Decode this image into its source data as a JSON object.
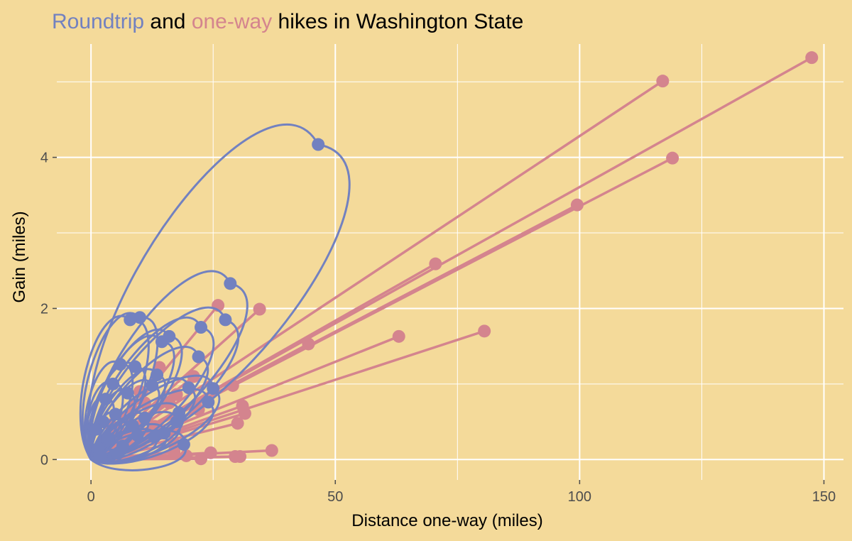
{
  "chart_data": {
    "type": "scatter",
    "title_parts": [
      {
        "text": "Roundtrip",
        "color": "#7281C0"
      },
      {
        "text": " and ",
        "color": "#000000"
      },
      {
        "text": "one-way",
        "color": "#D4848E"
      },
      {
        "text": " hikes in Washington State",
        "color": "#000000"
      }
    ],
    "xlabel": "Distance one-way (miles)",
    "ylabel": "Gain (miles)",
    "xlim": [
      -7,
      154
    ],
    "ylim": [
      -0.27,
      5.5
    ],
    "x_ticks": [
      0,
      50,
      100,
      150
    ],
    "y_ticks": [
      0,
      2,
      4
    ],
    "grid": true,
    "legend": "none",
    "colors": {
      "roundtrip": "#7281C0",
      "oneway": "#D4848E",
      "background": "#F4DA9A",
      "grid": "#FFFFFF"
    },
    "series": [
      {
        "name": "one-way",
        "style": "straight-line-from-origin",
        "points": [
          {
            "x": 147.5,
            "y": 5.32
          },
          {
            "x": 117,
            "y": 5.01
          },
          {
            "x": 119,
            "y": 3.99
          },
          {
            "x": 99.5,
            "y": 3.37
          },
          {
            "x": 70.5,
            "y": 2.59
          },
          {
            "x": 80.5,
            "y": 1.7
          },
          {
            "x": 63,
            "y": 1.63
          },
          {
            "x": 44.5,
            "y": 1.53
          },
          {
            "x": 34.5,
            "y": 1.99
          },
          {
            "x": 26,
            "y": 2.04
          },
          {
            "x": 29,
            "y": 0.98
          },
          {
            "x": 31,
            "y": 0.71
          },
          {
            "x": 31.5,
            "y": 0.61
          },
          {
            "x": 30,
            "y": 0.48
          },
          {
            "x": 37,
            "y": 0.12
          },
          {
            "x": 30.5,
            "y": 0.04
          },
          {
            "x": 29.5,
            "y": 0.04
          },
          {
            "x": 24.5,
            "y": 0.09
          },
          {
            "x": 22.5,
            "y": 0.01
          },
          {
            "x": 22,
            "y": 0.66
          },
          {
            "x": 21,
            "y": 1.1
          },
          {
            "x": 17.5,
            "y": 0.86
          },
          {
            "x": 16,
            "y": 0.75
          },
          {
            "x": 14,
            "y": 1.22
          },
          {
            "x": 17,
            "y": 0.21
          },
          {
            "x": 17,
            "y": 0.1
          },
          {
            "x": 13,
            "y": 0.44
          },
          {
            "x": 11,
            "y": 0.75
          },
          {
            "x": 19.5,
            "y": 0.05
          },
          {
            "x": 8.5,
            "y": 0.65
          },
          {
            "x": 6.5,
            "y": 0.34
          },
          {
            "x": 5.5,
            "y": 0.19
          },
          {
            "x": 10,
            "y": 0.9
          },
          {
            "x": 4,
            "y": 0.46
          }
        ]
      },
      {
        "name": "roundtrip",
        "style": "loop-from-origin",
        "points": [
          {
            "x": 46.5,
            "y": 4.17
          },
          {
            "x": 28.5,
            "y": 2.33
          },
          {
            "x": 27.5,
            "y": 1.85
          },
          {
            "x": 10,
            "y": 1.88
          },
          {
            "x": 8,
            "y": 1.85
          },
          {
            "x": 22.5,
            "y": 1.75
          },
          {
            "x": 22,
            "y": 1.36
          },
          {
            "x": 25,
            "y": 0.94
          },
          {
            "x": 24,
            "y": 0.76
          },
          {
            "x": 18,
            "y": 0.62
          },
          {
            "x": 16,
            "y": 1.63
          },
          {
            "x": 14.5,
            "y": 1.56
          },
          {
            "x": 13.5,
            "y": 1.12
          },
          {
            "x": 12.5,
            "y": 0.98
          },
          {
            "x": 11,
            "y": 0.55
          },
          {
            "x": 19,
            "y": 0.2
          },
          {
            "x": 17.5,
            "y": 0.5
          },
          {
            "x": 9,
            "y": 1.23
          },
          {
            "x": 6,
            "y": 1.26
          },
          {
            "x": 7.5,
            "y": 0.88
          },
          {
            "x": 5,
            "y": 0.6
          },
          {
            "x": 9.5,
            "y": 0.32
          },
          {
            "x": 6.5,
            "y": 0.18
          },
          {
            "x": 2.5,
            "y": 0.5
          },
          {
            "x": 3.5,
            "y": 0.28
          },
          {
            "x": 1.5,
            "y": 0.15
          },
          {
            "x": 4.5,
            "y": 1.0
          },
          {
            "x": 3,
            "y": 0.8
          },
          {
            "x": 8.5,
            "y": 0.45
          },
          {
            "x": 13,
            "y": 0.3
          },
          {
            "x": 15,
            "y": 0.35
          },
          {
            "x": 20,
            "y": 0.95
          },
          {
            "x": 2,
            "y": 0.05
          },
          {
            "x": 5.5,
            "y": 0.08
          },
          {
            "x": 1,
            "y": 0.4
          }
        ]
      }
    ]
  }
}
